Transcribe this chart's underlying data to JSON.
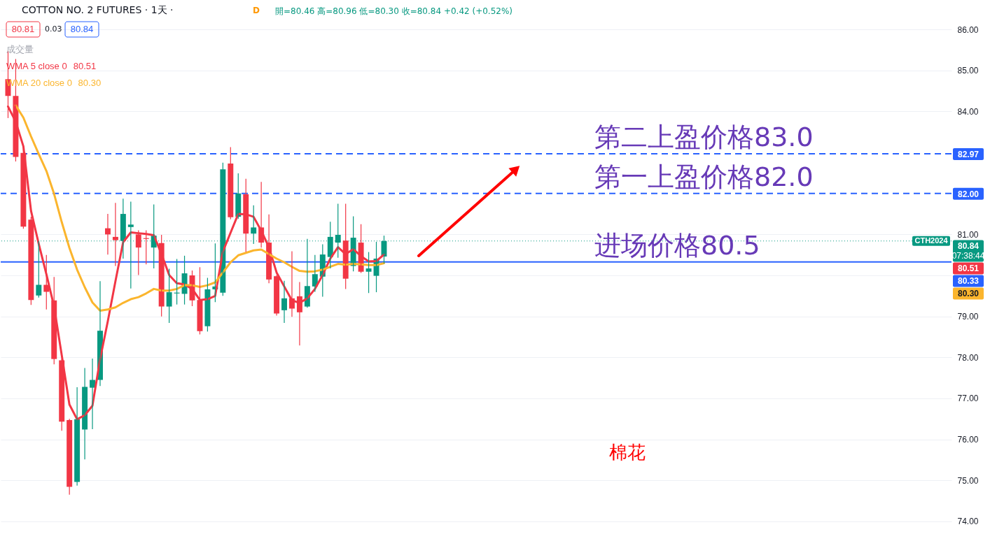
{
  "chart_data": {
    "type": "candlestick",
    "title": "COTTON NO. 2 FUTURES · 1天 ·",
    "subtitle": "開=80.46 高=80.96 低=80.30 收=80.84 +0.42 (+0.52%)",
    "categories": [
      null,
      null,
      null,
      null,
      null,
      null,
      null,
      null,
      null,
      null,
      null,
      null,
      null,
      null,
      null,
      null,
      null,
      null,
      null,
      null,
      null,
      null,
      null,
      null,
      null,
      null,
      null,
      null,
      null,
      null,
      null,
      null,
      null,
      null,
      null,
      null,
      null,
      null,
      null,
      null,
      null,
      null,
      null,
      null,
      null,
      null,
      null,
      null,
      null,
      null,
      null,
      null,
      null,
      null,
      null,
      null,
      null,
      null,
      null,
      null,
      null,
      null,
      null,
      null,
      null,
      null,
      null,
      null,
      null,
      null,
      null,
      null,
      null,
      null,
      null,
      null,
      null,
      null,
      null,
      null,
      null,
      null,
      null,
      null,
      null,
      null,
      null,
      null,
      null,
      null,
      null,
      null,
      null,
      null,
      null,
      null,
      null,
      null,
      null,
      null,
      null,
      null,
      null,
      null,
      null,
      null,
      null,
      null,
      null,
      null,
      null,
      null,
      null,
      null,
      null,
      null,
      null,
      null,
      null,
      null,
      null,
      null,
      null
    ],
    "ohlc": [
      [
        84.79,
        85.47,
        83.85,
        84.38
      ],
      [
        84.38,
        85.27,
        82.79,
        82.89
      ],
      [
        82.99,
        83.09,
        81.15,
        81.19
      ],
      [
        81.36,
        81.42,
        79.29,
        79.4
      ],
      [
        79.51,
        80.83,
        79.47,
        79.77
      ],
      [
        79.77,
        80.49,
        79.18,
        79.6
      ],
      [
        79.39,
        79.95,
        77.84,
        77.96
      ],
      [
        77.93,
        77.95,
        76.22,
        76.43
      ],
      [
        76.47,
        76.49,
        74.66,
        74.84
      ],
      [
        74.96,
        77.26,
        74.88,
        76.49
      ],
      [
        76.24,
        77.73,
        75.52,
        77.28
      ],
      [
        77.26,
        77.96,
        76.26,
        77.45
      ],
      [
        77.45,
        79.85,
        77.31,
        78.65
      ],
      [
        81.15,
        81.49,
        80.52,
        81.0
      ],
      [
        80.94,
        81.76,
        80.24,
        80.86
      ],
      [
        80.84,
        81.86,
        80.42,
        81.5
      ],
      [
        81.18,
        81.79,
        79.69,
        81.24
      ],
      [
        81.0,
        81.09,
        80.02,
        80.68
      ],
      [
        80.91,
        81.09,
        80.28,
        80.89
      ],
      [
        80.68,
        81.72,
        80.18,
        80.97
      ],
      [
        80.79,
        80.98,
        79.01,
        79.24
      ],
      [
        79.24,
        80.15,
        78.85,
        79.59
      ],
      [
        79.56,
        80.39,
        79.3,
        79.58
      ],
      [
        79.55,
        80.47,
        79.3,
        80.05
      ],
      [
        80.0,
        80.11,
        79.26,
        79.39
      ],
      [
        79.4,
        80.19,
        78.57,
        78.64
      ],
      [
        78.76,
        79.93,
        78.64,
        79.66
      ],
      [
        79.66,
        80.77,
        79.36,
        79.73
      ],
      [
        79.58,
        82.74,
        79.51,
        82.59
      ],
      [
        82.73,
        83.12,
        81.38,
        81.42
      ],
      [
        81.43,
        82.48,
        81.39,
        82.0
      ],
      [
        81.98,
        82.35,
        80.58,
        81.02
      ],
      [
        81.02,
        81.7,
        80.78,
        81.17
      ],
      [
        81.17,
        82.27,
        80.69,
        80.8
      ],
      [
        80.8,
        81.48,
        79.82,
        79.9
      ],
      [
        79.98,
        80.0,
        79.03,
        79.07
      ],
      [
        79.15,
        79.86,
        78.85,
        79.44
      ],
      [
        79.44,
        80.58,
        79.0,
        79.19
      ],
      [
        79.49,
        79.83,
        78.3,
        79.1
      ],
      [
        79.24,
        80.88,
        79.22,
        79.74
      ],
      [
        79.73,
        80.49,
        79.61,
        80.03
      ],
      [
        79.97,
        80.75,
        79.49,
        80.51
      ],
      [
        80.45,
        81.3,
        80.18,
        80.94
      ],
      [
        80.8,
        81.74,
        80.44,
        80.99
      ],
      [
        80.85,
        81.74,
        79.68,
        79.92
      ],
      [
        80.23,
        81.43,
        80.11,
        80.92
      ],
      [
        80.8,
        81.24,
        80.07,
        80.09
      ],
      [
        80.09,
        80.56,
        79.58,
        80.17
      ],
      [
        79.99,
        80.81,
        79.6,
        80.41
      ],
      [
        80.46,
        80.96,
        80.3,
        80.84
      ],
      null,
      null,
      null,
      null,
      null,
      null,
      null,
      null,
      null,
      null,
      null,
      null,
      null,
      null,
      null,
      null,
      null,
      null,
      null,
      null,
      null,
      null,
      null,
      null,
      null,
      null,
      null,
      null,
      null,
      null,
      null,
      null,
      null,
      null,
      null,
      null,
      null,
      null,
      null,
      null,
      null,
      null,
      null,
      null,
      null,
      null,
      null,
      null,
      null,
      null,
      null,
      null,
      null,
      null,
      null,
      null,
      null,
      null,
      null,
      null,
      null,
      null,
      null,
      null,
      null,
      null,
      null,
      null,
      null,
      null,
      null,
      null,
      null
    ],
    "colors": [
      "#f23645",
      "#f23645",
      "#f23645",
      "#f23645",
      "#089981",
      "#f23645",
      "#f23645",
      "#f23645",
      "#f23645",
      "#089981",
      "#089981",
      "#089981",
      "#089981",
      "#f23645",
      "#f23645",
      "#089981",
      "#089981",
      "#f23645",
      "#f23645",
      "#089981",
      "#f23645",
      "#089981",
      "#089981",
      "#089981",
      "#f23645",
      "#f23645",
      "#089981",
      "#089981",
      "#089981",
      "#f23645",
      "#089981",
      "#f23645",
      "#089981",
      "#f23645",
      "#f23645",
      "#f23645",
      "#089981",
      "#f23645",
      "#f23645",
      "#089981",
      "#089981",
      "#089981",
      "#089981",
      "#089981",
      "#f23645",
      "#089981",
      "#f23645",
      "#089981",
      "#089981",
      "#089981",
      null,
      null,
      null,
      null,
      null,
      null,
      null,
      null,
      null,
      null,
      null,
      null,
      null,
      null,
      null,
      null,
      null,
      null,
      null,
      null,
      null,
      null,
      null,
      null,
      null,
      null,
      null,
      null,
      null,
      null,
      null,
      null,
      null,
      null,
      null,
      null,
      null,
      null,
      null,
      null,
      null,
      null,
      null,
      null,
      null,
      null,
      null,
      null,
      null,
      null,
      null,
      null,
      null,
      null,
      null,
      null,
      null,
      null,
      null,
      null,
      null,
      null,
      null,
      null,
      null,
      null,
      null,
      null,
      null,
      null,
      null,
      null,
      null
    ],
    "series": [
      {
        "name": "WMA 5 close 0",
        "type": "line",
        "color": "#f23645",
        "values": [
          84.12,
          83.75,
          83.15,
          81.57,
          80.77,
          80.03,
          79.24,
          78.05,
          76.85,
          76.49,
          76.59,
          76.82,
          77.96,
          78.88,
          79.86,
          80.81,
          81.05,
          81.03,
          81.01,
          80.98,
          80.52,
          80.01,
          79.81,
          79.78,
          79.67,
          79.4,
          79.42,
          79.5,
          80.58,
          81.04,
          81.5,
          81.49,
          81.43,
          81.09,
          80.69,
          80.07,
          79.73,
          79.39,
          79.33,
          79.44,
          79.67,
          80.01,
          80.41,
          80.69,
          80.52,
          80.64,
          80.47,
          80.34,
          80.35,
          80.51,
          null,
          null,
          null,
          null,
          null,
          null,
          null,
          null,
          null,
          null,
          null,
          null,
          null,
          null,
          null,
          null,
          null,
          null,
          null,
          null,
          null,
          null,
          null,
          null,
          null,
          null,
          null,
          null,
          null,
          null,
          null,
          null,
          null,
          null,
          null,
          null,
          null,
          null,
          null,
          null,
          null,
          null,
          null,
          null,
          null,
          null,
          null,
          null,
          null,
          null,
          null,
          null,
          null,
          null,
          null,
          null,
          null,
          null,
          null,
          null,
          null,
          null,
          null,
          null,
          null,
          null,
          null,
          null,
          null,
          null,
          null,
          null,
          null
        ]
      },
      {
        "name": "WMA 20 close 0",
        "type": "line",
        "color": "#fbb52d",
        "values": [
          null,
          84.15,
          83.85,
          83.39,
          82.96,
          82.55,
          81.99,
          81.3,
          80.67,
          80.14,
          79.71,
          79.34,
          79.14,
          79.17,
          79.22,
          79.33,
          79.42,
          79.47,
          79.56,
          79.67,
          79.63,
          79.63,
          79.67,
          79.76,
          79.76,
          79.72,
          79.76,
          79.83,
          80.07,
          80.32,
          80.49,
          80.55,
          80.61,
          80.63,
          80.52,
          80.41,
          80.32,
          80.21,
          80.11,
          80.09,
          80.1,
          80.14,
          80.21,
          80.28,
          80.26,
          80.28,
          80.27,
          80.25,
          80.25,
          80.3,
          null,
          null,
          null,
          null,
          null,
          null,
          null,
          null,
          null,
          null,
          null,
          null,
          null,
          null,
          null,
          null,
          null,
          null,
          null,
          null,
          null,
          null,
          null,
          null,
          null,
          null,
          null,
          null,
          null,
          null,
          null,
          null,
          null,
          null,
          null,
          null,
          null,
          null,
          null,
          null,
          null,
          null,
          null,
          null,
          null,
          null,
          null,
          null,
          null,
          null,
          null,
          null,
          null,
          null,
          null,
          null,
          null,
          null,
          null,
          null,
          null,
          null,
          null,
          null,
          null,
          null,
          null,
          null,
          null,
          null,
          null,
          null,
          null
        ]
      }
    ],
    "ylim": [
      73.69,
      86.72
    ],
    "yticks": [
      {
        "value": 74,
        "label": "74.00"
      },
      {
        "value": 75,
        "label": "75.00"
      },
      {
        "value": 76,
        "label": "76.00"
      },
      {
        "value": 77,
        "label": "77.00"
      },
      {
        "value": 78,
        "label": "78.00"
      },
      {
        "value": 79,
        "label": "79.00"
      },
      {
        "value": 80,
        "label": null
      },
      {
        "value": 81,
        "label": "81.00"
      },
      {
        "value": 84,
        "label": "84.00"
      },
      {
        "value": 85,
        "label": "85.00"
      },
      {
        "value": 86,
        "label": "86.00"
      }
    ],
    "ref_lines": [
      {
        "axis": "y",
        "value": 82.97,
        "label": "82.97",
        "color": "#2962ff",
        "line_style": "dashed"
      },
      {
        "axis": "y",
        "value": 82.0,
        "label": "82.00",
        "color": "#2962ff",
        "line_style": "dashed"
      },
      {
        "axis": "y",
        "value": 80.84,
        "label": "80.84",
        "color": "#089981",
        "line_style": "dotted"
      },
      {
        "axis": "y",
        "value": 80.33,
        "label": "80.33",
        "color": "#2962ff",
        "line_style": "solid"
      }
    ],
    "annotations": [
      "80.81",
      "0.03",
      "80.84",
      "成交量",
      "D",
      "80.51",
      "80.30",
      {
        "text": "第二上盈价格83.0",
        "y": 82.97
      },
      {
        "text": "第一上盈价格82.0",
        "y": 82.0
      },
      {
        "text": "进场价格80.5",
        "y": 80.33
      },
      "CTH2024",
      "07:38:44",
      "80.51",
      "80.30",
      "棉花"
    ],
    "grid": "y",
    "legend": "top left",
    "tick_labels": "y"
  }
}
